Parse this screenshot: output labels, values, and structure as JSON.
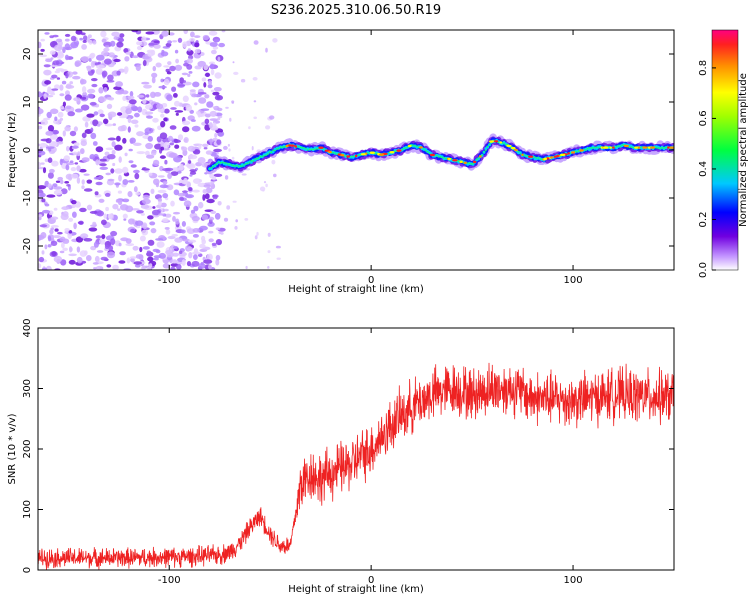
{
  "title": "S236.2025.310.06.50.R19",
  "chart_data": [
    {
      "type": "heatmap",
      "name": "spectrogram",
      "xlabel": "Height of straight line (km)",
      "ylabel": "Frequency (Hz)",
      "xlim": [
        -165,
        150
      ],
      "ylim": [
        -25,
        25
      ],
      "x_ticks": [
        -100,
        0,
        100
      ],
      "y_ticks": [
        -20,
        -10,
        0,
        10,
        20
      ],
      "x_ticklabels": [
        "-100",
        "0",
        "100"
      ],
      "y_ticklabels": [
        "-20",
        "-10",
        "0",
        "10",
        "20"
      ],
      "colorbar": {
        "label": "Normalized spectral amplitude",
        "range": [
          0,
          0.95
        ],
        "ticks": [
          "0.0",
          "0.2",
          "0.4",
          "0.6",
          "0.8"
        ],
        "tick_values": [
          0.0,
          0.2,
          0.4,
          0.6,
          0.8
        ]
      },
      "noise_region_x": [
        -165,
        -80
      ],
      "trace_start_x": -80,
      "trace": {
        "x": [
          -80,
          -75,
          -70,
          -65,
          -60,
          -55,
          -50,
          -45,
          -40,
          -35,
          -30,
          -25,
          -20,
          -15,
          -10,
          -5,
          0,
          5,
          10,
          15,
          20,
          25,
          30,
          35,
          40,
          45,
          50,
          55,
          60,
          65,
          70,
          75,
          80,
          85,
          90,
          95,
          100,
          105,
          110,
          115,
          120,
          125,
          130,
          135,
          140,
          145,
          150
        ],
        "freq": [
          -4,
          -2.5,
          -3,
          -3.5,
          -2.5,
          -1.5,
          -0.5,
          0.5,
          1,
          0.5,
          0,
          0.5,
          -0.5,
          -1,
          -1.5,
          -1,
          -0.5,
          -1,
          -0.5,
          0,
          1,
          0.5,
          -1,
          -1.5,
          -2,
          -2.5,
          -3,
          -1,
          2,
          1.5,
          0.5,
          -1,
          -1.5,
          -2,
          -1.5,
          -1,
          -0.5,
          0,
          0.5,
          0.5,
          0.5,
          1,
          0.5,
          0.5,
          0.5,
          0.5,
          0.5
        ]
      }
    },
    {
      "type": "line",
      "name": "snr",
      "xlabel": "Height of straight line (km)",
      "ylabel": "SNR (10 * v/v)",
      "xlim": [
        -165,
        150
      ],
      "ylim": [
        0,
        400
      ],
      "x_ticks": [
        -100,
        0,
        100
      ],
      "y_ticks": [
        0,
        100,
        200,
        300,
        400
      ],
      "x_ticklabels": [
        "-100",
        "0",
        "100"
      ],
      "y_ticklabels": [
        "0",
        "100",
        "200",
        "300",
        "400"
      ],
      "color": "#ee2222",
      "trend": {
        "x": [
          -165,
          -120,
          -90,
          -75,
          -70,
          -65,
          -60,
          -55,
          -50,
          -45,
          -40,
          -35,
          -30,
          -25,
          -20,
          -10,
          0,
          10,
          20,
          30,
          40,
          50,
          60,
          70,
          80,
          100,
          120,
          150
        ],
        "y": [
          20,
          20,
          22,
          25,
          30,
          45,
          70,
          90,
          60,
          40,
          40,
          140,
          160,
          150,
          160,
          175,
          200,
          240,
          270,
          290,
          300,
          290,
          300,
          300,
          285,
          280,
          290,
          285
        ]
      },
      "noise_amplitude": 12
    }
  ]
}
